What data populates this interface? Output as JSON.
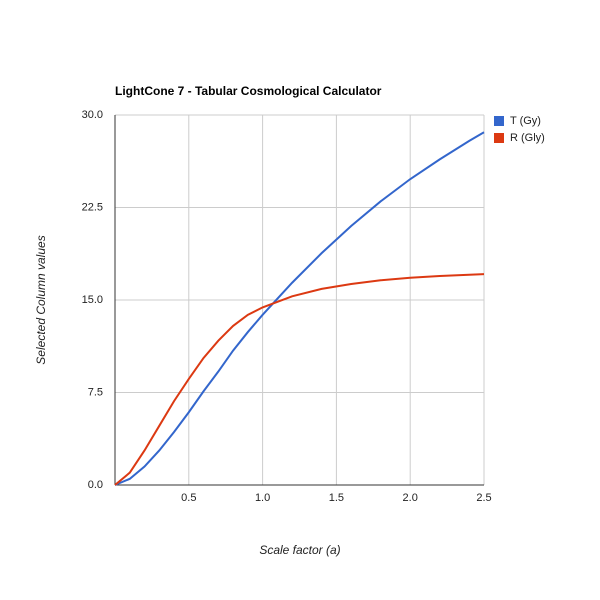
{
  "chart_data": {
    "type": "line",
    "title": "LightCone 7 - Tabular Cosmological Calculator",
    "x_label": "Scale factor (a)",
    "y_label": "Selected Column values",
    "x": [
      0,
      0.1,
      0.2,
      0.3,
      0.4,
      0.5,
      0.6,
      0.7,
      0.8,
      0.9,
      1.0,
      1.2,
      1.4,
      1.6,
      1.8,
      2.0,
      2.2,
      2.4,
      2.5
    ],
    "series": [
      {
        "name": "T (Gy)",
        "color": "#3366cc",
        "values": [
          0,
          0.5,
          1.5,
          2.8,
          4.3,
          5.9,
          7.6,
          9.2,
          10.9,
          12.4,
          13.8,
          16.4,
          18.8,
          21.0,
          23.0,
          24.8,
          26.4,
          27.9,
          28.6
        ]
      },
      {
        "name": "R (Gly)",
        "color": "#dc3912",
        "values": [
          0,
          1.0,
          2.8,
          4.8,
          6.8,
          8.6,
          10.3,
          11.7,
          12.9,
          13.8,
          14.4,
          15.3,
          15.9,
          16.3,
          16.6,
          16.8,
          16.95,
          17.05,
          17.1
        ]
      }
    ],
    "xlim": [
      0,
      2.5
    ],
    "xticks": [
      0.5,
      {
        "value": 1,
        "label": "1.0"
      },
      1.5,
      {
        "value": 2,
        "label": "2.0"
      },
      2.5
    ],
    "ylim": [
      0,
      30
    ],
    "yticks": [
      {
        "value": 0,
        "label": "0.0"
      },
      7.5,
      {
        "value": 15,
        "label": "15.0"
      },
      22.5,
      {
        "value": 30,
        "label": "30.0"
      }
    ],
    "grid": true,
    "legend": "right"
  }
}
